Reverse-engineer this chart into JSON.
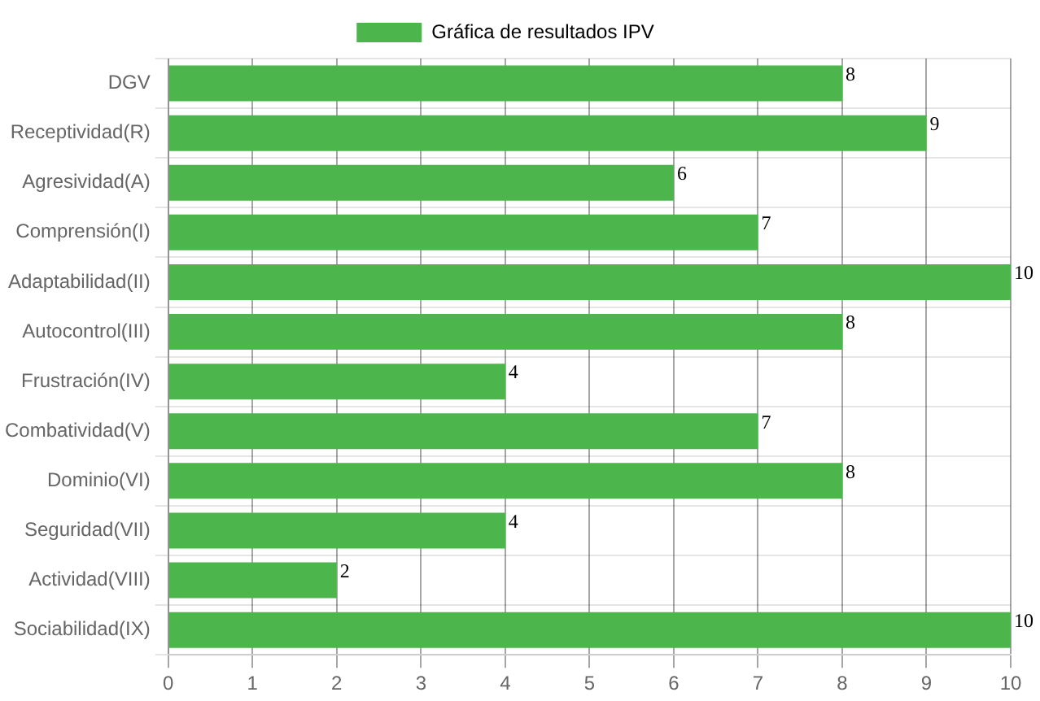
{
  "chart_data": {
    "type": "bar",
    "orientation": "horizontal",
    "categories": [
      "DGV",
      "Receptividad(R)",
      "Agresividad(A)",
      "Comprensión(I)",
      "Adaptabilidad(II)",
      "Autocontrol(III)",
      "Frustración(IV)",
      "Combatividad(V)",
      "Dominio(VI)",
      "Seguridad(VII)",
      "Actividad(VIII)",
      "Sociabilidad(IX)"
    ],
    "series": [
      {
        "name": "Gráfica de resultados IPV",
        "color": "#4cb54c",
        "values": [
          8,
          9,
          6,
          7,
          10,
          8,
          4,
          7,
          8,
          4,
          2,
          10
        ]
      }
    ],
    "xlim": [
      0,
      10
    ],
    "xticks": [
      0,
      1,
      2,
      3,
      4,
      5,
      6,
      7,
      8,
      9,
      10
    ],
    "grid": true,
    "legend": "top",
    "data_labels": true
  }
}
